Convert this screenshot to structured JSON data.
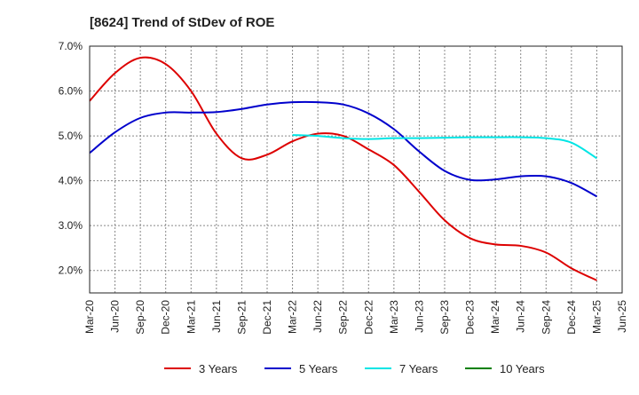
{
  "chart_data": {
    "type": "line",
    "title": "[8624]  Trend of StDev of ROE",
    "xlabel": "",
    "ylabel": "",
    "x_ticks": [
      "Mar-20",
      "Jun-20",
      "Sep-20",
      "Dec-20",
      "Mar-21",
      "Jun-21",
      "Sep-21",
      "Dec-21",
      "Mar-22",
      "Jun-22",
      "Sep-22",
      "Dec-22",
      "Mar-23",
      "Jun-23",
      "Sep-23",
      "Dec-23",
      "Mar-24",
      "Jun-24",
      "Sep-24",
      "Dec-24",
      "Mar-25",
      "Jun-25"
    ],
    "y_ticks": [
      "2.0%",
      "3.0%",
      "4.0%",
      "5.0%",
      "6.0%",
      "7.0%"
    ],
    "ylim": [
      1.5,
      7.0
    ],
    "grid": true,
    "legend_position": "bottom",
    "series": [
      {
        "name": "3 Years",
        "color": "#dd0000",
        "x": [
          "Mar-20",
          "Jun-20",
          "Sep-20",
          "Dec-20",
          "Mar-21",
          "Jun-21",
          "Sep-21",
          "Dec-21",
          "Mar-22",
          "Jun-22",
          "Sep-22",
          "Dec-22",
          "Mar-23",
          "Jun-23",
          "Sep-23",
          "Dec-23",
          "Mar-24",
          "Jun-24",
          "Sep-24",
          "Dec-24",
          "Mar-25"
        ],
        "values": [
          5.78,
          6.4,
          6.74,
          6.6,
          6.0,
          5.05,
          4.5,
          4.58,
          4.88,
          5.05,
          5.0,
          4.7,
          4.35,
          3.75,
          3.12,
          2.72,
          2.58,
          2.55,
          2.4,
          2.05,
          1.78
        ]
      },
      {
        "name": "5 Years",
        "color": "#0000cc",
        "x": [
          "Mar-20",
          "Jun-20",
          "Sep-20",
          "Dec-20",
          "Mar-21",
          "Jun-21",
          "Sep-21",
          "Dec-21",
          "Mar-22",
          "Jun-22",
          "Sep-22",
          "Dec-22",
          "Mar-23",
          "Jun-23",
          "Sep-23",
          "Dec-23",
          "Mar-24",
          "Jun-24",
          "Sep-24",
          "Dec-24",
          "Mar-25"
        ],
        "values": [
          4.62,
          5.08,
          5.4,
          5.52,
          5.52,
          5.53,
          5.6,
          5.7,
          5.75,
          5.75,
          5.7,
          5.5,
          5.15,
          4.65,
          4.22,
          4.02,
          4.03,
          4.1,
          4.1,
          3.95,
          3.65
        ]
      },
      {
        "name": "7 Years",
        "color": "#00e5e5",
        "x": [
          "Mar-22",
          "Jun-22",
          "Sep-22",
          "Dec-22",
          "Mar-23",
          "Jun-23",
          "Sep-23",
          "Dec-23",
          "Mar-24",
          "Jun-24",
          "Sep-24",
          "Dec-24",
          "Mar-25"
        ],
        "values": [
          5.02,
          5.0,
          4.95,
          4.93,
          4.95,
          4.95,
          4.96,
          4.97,
          4.97,
          4.97,
          4.95,
          4.85,
          4.5
        ]
      },
      {
        "name": "10 Years",
        "color": "#008000",
        "x": [],
        "values": []
      }
    ]
  }
}
